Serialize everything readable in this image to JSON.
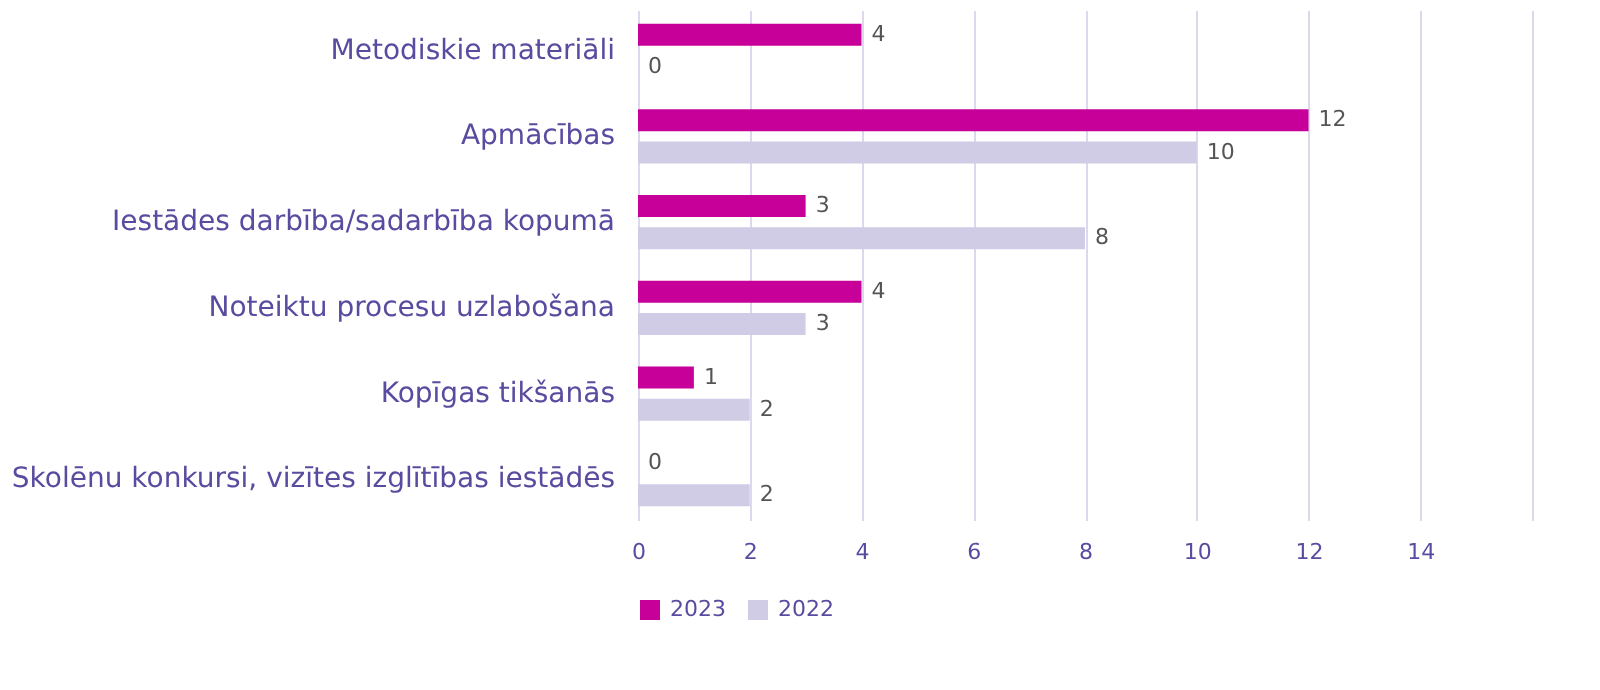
{
  "chart_data": {
    "type": "bar",
    "orientation": "horizontal",
    "categories": [
      "Metodiskie materiāli",
      "Apmācības",
      "Iestādes darbība/sadarbība kopumā",
      "Noteiktu procesu uzlabošana",
      "Kopīgas tikšanās",
      "Skolēnu konkursi, vizītes izglītības iestādēs"
    ],
    "series": [
      {
        "name": "2023",
        "color": "#c8009a",
        "values": [
          4,
          12,
          3,
          4,
          1,
          0
        ]
      },
      {
        "name": "2022",
        "color": "#d0cce6",
        "values": [
          0,
          10,
          8,
          3,
          2,
          2
        ]
      }
    ],
    "xlim": [
      0,
      16
    ],
    "xticks": [
      0,
      2,
      4,
      6,
      8,
      10,
      12,
      14,
      {
        "value": 16,
        "label": null
      }
    ],
    "grid": "x",
    "legend": "bottom",
    "data_labels": true
  }
}
